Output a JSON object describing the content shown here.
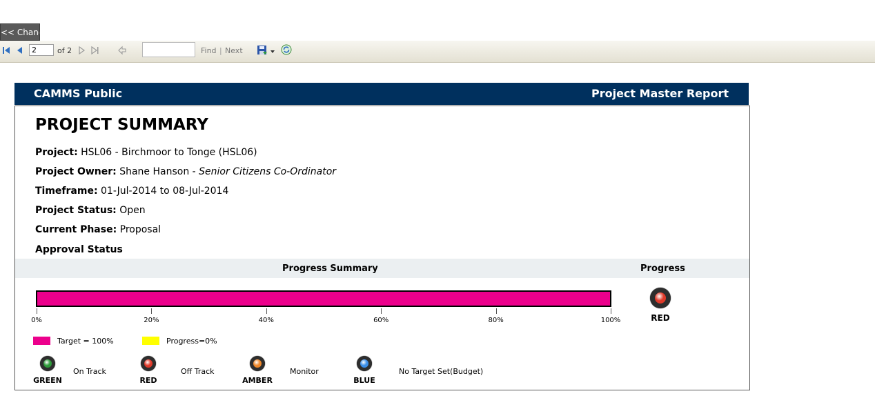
{
  "toolbar": {
    "change_label": "<< Change",
    "page_value": "2",
    "page_total_label": "of 2",
    "find_label": "Find",
    "separator": "|",
    "next_label": "Next"
  },
  "report": {
    "org": "CAMMS Public",
    "title": "Project Master Report",
    "summary_title": "PROJECT SUMMARY",
    "project_label": "Project:",
    "project_value": "HSL06 - Birchmoor to Tonge (HSL06)",
    "owner_label": "Project Owner:",
    "owner_name": "Shane Hanson - ",
    "owner_role": "Senior Citizens Co-Ordinator",
    "timeframe_label": "Timeframe:",
    "timeframe_value": "01-Jul-2014 to 08-Jul-2014",
    "status_label": "Project Status:",
    "status_value": "Open",
    "phase_label": "Current Phase:",
    "phase_value": "Proposal",
    "approval_label": "Approval Status"
  },
  "progress": {
    "summary_label": "Progress Summary",
    "progress_label": "Progress",
    "target_percent": 100,
    "progress_percent": 0,
    "ticks": [
      "0%",
      "20%",
      "40%",
      "60%",
      "80%",
      "100%"
    ],
    "status_lamp": "RED",
    "legend_target": "Target = 100%",
    "legend_progress": "Progress=0%",
    "colors": {
      "target": "#ec008c",
      "progress": "#ffff00"
    }
  },
  "status_legend": [
    {
      "name": "GREEN",
      "desc": "On Track",
      "color": "#2e9b3a"
    },
    {
      "name": "RED",
      "desc": "Off Track",
      "color": "#e03a2a"
    },
    {
      "name": "AMBER",
      "desc": "Monitor",
      "color": "#f0882a"
    },
    {
      "name": "BLUE",
      "desc": "No Target Set(Budget)",
      "color": "#3a8ee8"
    }
  ]
}
